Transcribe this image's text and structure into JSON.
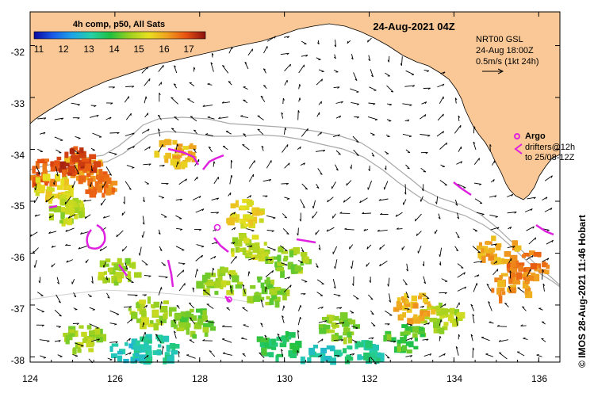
{
  "map": {
    "date_title": "24-Aug-2021 04Z",
    "colorbar": {
      "title": "4h comp, p50, All Sats",
      "ticks": [
        "11",
        "12",
        "13",
        "14",
        "15",
        "16",
        "17"
      ],
      "min": 10.5,
      "max": 17.5,
      "colors": [
        "#0a0aa0",
        "#1a5ae8",
        "#1ea4e8",
        "#26d0a8",
        "#20c040",
        "#9ad020",
        "#e8e020",
        "#f0a020",
        "#e85010",
        "#8a1010"
      ]
    },
    "current_legend": {
      "line1": "NRT00 GSL",
      "line2": "24-Aug 18:00Z",
      "line3": "0.5m/s (1kt 24h)"
    },
    "argo_legend": {
      "argo_label": "Argo",
      "drifters_line1": "drifters@12h",
      "drifters_line2": "to 25/08-12Z"
    },
    "credit": "© IMOS 28-Aug-2021 11:46 Hobart",
    "x_axis": {
      "ticks": [
        "124",
        "126",
        "128",
        "130",
        "132",
        "134",
        "136"
      ],
      "min": 124,
      "max": 136.5
    },
    "y_axis": {
      "ticks": [
        "-32",
        "-33",
        "-34",
        "-35",
        "-36",
        "-37",
        "-38"
      ],
      "min": -38.1,
      "max": -31.35
    },
    "land_color": "#fac896",
    "argo_color": "#e020e0",
    "sst_patches": [
      {
        "lon": 124.3,
        "lat": -34.4,
        "value": 16.6
      },
      {
        "lon": 124.5,
        "lat": -34.7,
        "value": 15.2
      },
      {
        "lon": 125.2,
        "lat": -34.3,
        "value": 15.8
      },
      {
        "lon": 125.5,
        "lat": -34.6,
        "value": 16.3
      },
      {
        "lon": 125.0,
        "lat": -34.2,
        "value": 16.9
      },
      {
        "lon": 124.8,
        "lat": -35.1,
        "value": 14.6
      },
      {
        "lon": 127.4,
        "lat": -34.0,
        "value": 15.7
      },
      {
        "lon": 129.1,
        "lat": -35.8,
        "value": 14.7
      },
      {
        "lon": 128.4,
        "lat": -36.5,
        "value": 14.5
      },
      {
        "lon": 129.5,
        "lat": -36.7,
        "value": 14.3
      },
      {
        "lon": 130.0,
        "lat": -36.1,
        "value": 14.4
      },
      {
        "lon": 126.8,
        "lat": -37.1,
        "value": 14.6
      },
      {
        "lon": 127.8,
        "lat": -37.3,
        "value": 14.2
      },
      {
        "lon": 131.2,
        "lat": -37.4,
        "value": 14.3
      },
      {
        "lon": 132.8,
        "lat": -37.6,
        "value": 13.9
      },
      {
        "lon": 133.6,
        "lat": -37.2,
        "value": 14.6
      },
      {
        "lon": 126.3,
        "lat": -37.9,
        "value": 12.6
      },
      {
        "lon": 126.9,
        "lat": -37.8,
        "value": 12.9
      },
      {
        "lon": 129.8,
        "lat": -37.7,
        "value": 13.5
      },
      {
        "lon": 131.8,
        "lat": -37.9,
        "value": 13.0
      },
      {
        "lon": 130.8,
        "lat": -38.0,
        "value": 12.8
      },
      {
        "lon": 125.2,
        "lat": -37.6,
        "value": 14.5
      },
      {
        "lon": 135.3,
        "lat": -36.6,
        "value": 16.0
      },
      {
        "lon": 135.7,
        "lat": -36.2,
        "value": 16.3
      },
      {
        "lon": 135.0,
        "lat": -35.9,
        "value": 15.9
      },
      {
        "lon": 133.0,
        "lat": -37.0,
        "value": 15.7
      },
      {
        "lon": 129.0,
        "lat": -35.2,
        "value": 15.2
      },
      {
        "lon": 126.0,
        "lat": -36.3,
        "value": 14.5
      }
    ]
  }
}
